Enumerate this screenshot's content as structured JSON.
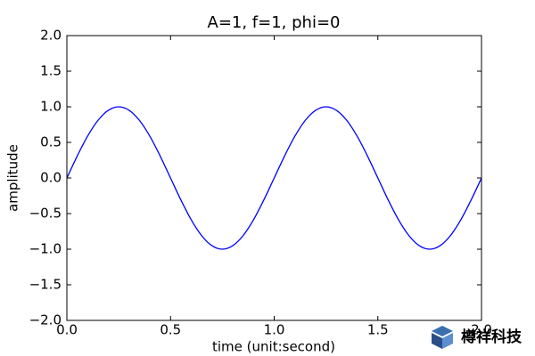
{
  "chart_data": {
    "type": "line",
    "title": "A=1, f=1, phi=0",
    "x_label": "time (unit:second)",
    "y_label": "amplitude",
    "x": [
      0,
      0.05,
      0.1,
      0.15,
      0.2,
      0.25,
      0.3,
      0.35,
      0.4,
      0.45,
      0.5,
      0.55,
      0.6,
      0.65,
      0.7,
      0.75,
      0.8,
      0.85,
      0.9,
      0.95,
      1,
      1.05,
      1.1,
      1.15,
      1.2,
      1.25,
      1.3,
      1.35,
      1.4,
      1.45,
      1.5,
      1.55,
      1.6,
      1.65,
      1.7,
      1.75,
      1.8,
      1.85,
      1.9,
      1.95,
      2
    ],
    "series": [
      {
        "color": "#0000ff",
        "values": [
          0,
          0.309,
          0.588,
          0.809,
          0.951,
          1,
          0.951,
          0.809,
          0.588,
          0.309,
          0,
          -0.309,
          -0.588,
          -0.809,
          -0.951,
          -1,
          -0.951,
          -0.809,
          -0.588,
          -0.309,
          0,
          0.309,
          0.588,
          0.809,
          0.951,
          1,
          0.951,
          0.809,
          0.588,
          0.309,
          0,
          -0.309,
          -0.588,
          -0.809,
          -0.951,
          -1,
          -0.951,
          -0.809,
          -0.588,
          -0.309,
          0
        ]
      }
    ],
    "xlim": [
      0,
      2
    ],
    "ylim": [
      -2,
      2
    ],
    "xticks": [
      {
        "value": 0,
        "label": "0.0"
      },
      0.5,
      {
        "value": 1,
        "label": "1.0"
      },
      1.5,
      {
        "value": 2,
        "label": "2.0"
      }
    ],
    "yticks": [
      {
        "value": -2,
        "label": "−2.0"
      },
      {
        "value": -1.5,
        "label": "−1.5"
      },
      {
        "value": -1,
        "label": "−1.0"
      },
      {
        "value": -0.5,
        "label": "−0.5"
      },
      {
        "value": 0,
        "label": "0.0"
      },
      0.5,
      {
        "value": 1,
        "label": "1.0"
      },
      1.5,
      {
        "value": 2,
        "label": "2.0"
      }
    ],
    "grid": false
  },
  "watermark": "樽祥科技"
}
